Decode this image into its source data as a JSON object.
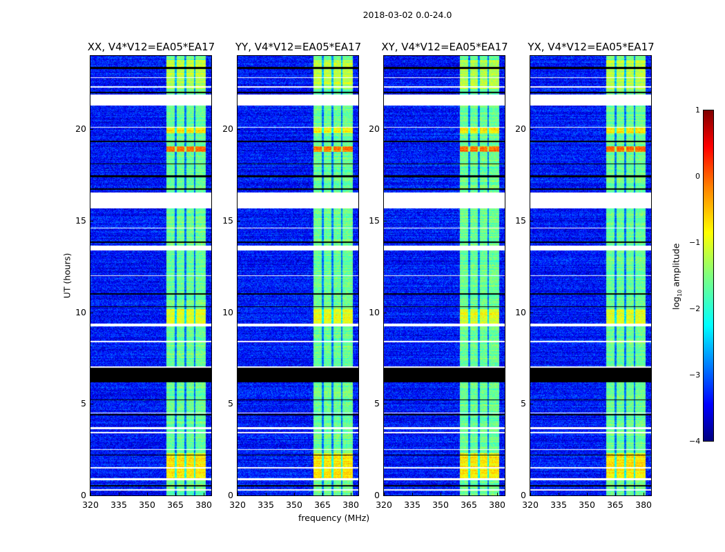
{
  "chart_data": {
    "type": "heatmap",
    "title": "2018-03-02 0.0-24.0",
    "xlabel": "frequency (MHz)",
    "ylabel": "UT (hours)",
    "xlim": [
      320,
      384
    ],
    "ylim": [
      0,
      24
    ],
    "xticks": [
      "320",
      "335",
      "350",
      "365",
      "380"
    ],
    "yticks": [
      "0",
      "5",
      "10",
      "15",
      "20"
    ],
    "panels": [
      {
        "title": "XX, V4*V12=EA05*EA17"
      },
      {
        "title": "YY, V4*V12=EA05*EA17"
      },
      {
        "title": "XY, V4*V12=EA05*EA17"
      },
      {
        "title": "YX, V4*V12=EA05*EA17"
      }
    ],
    "colorbar": {
      "label_prefix": "log",
      "label_sub": "10",
      "label_suffix": " amplitude",
      "range": [
        -4,
        1
      ],
      "ticks": [
        "1",
        "0",
        "−1",
        "−2",
        "−3",
        "−4"
      ],
      "colormap": "jet"
    },
    "background_level": -3.3,
    "bright_band_MHz": [
      360,
      381
    ],
    "bright_band_level": -1.6,
    "subband_gaps_MHz": [
      365,
      370,
      375
    ],
    "flagged_hours": [
      [
        0.3,
        0.35
      ],
      [
        0.85,
        0.95
      ],
      [
        1.5,
        1.55
      ],
      [
        2.5,
        2.55
      ],
      [
        3.4,
        3.5
      ],
      [
        3.65,
        3.75
      ],
      [
        4.5,
        4.55
      ],
      [
        7.0,
        7.05
      ],
      [
        8.4,
        8.45
      ],
      [
        9.25,
        9.4
      ],
      [
        12.0,
        12.05
      ],
      [
        13.4,
        13.65
      ],
      [
        14.6,
        14.65
      ],
      [
        15.7,
        16.55
      ],
      [
        20.1,
        20.15
      ],
      [
        21.3,
        21.9
      ],
      [
        22.3,
        22.35
      ],
      [
        22.8,
        22.85
      ]
    ],
    "zero_hours": [
      [
        0.5,
        0.6
      ],
      [
        2.2,
        2.25
      ],
      [
        4.4,
        4.45
      ],
      [
        5.2,
        5.25
      ],
      [
        6.2,
        7.0
      ],
      [
        10.3,
        10.35
      ],
      [
        11.0,
        11.05
      ],
      [
        13.8,
        13.9
      ],
      [
        16.7,
        16.8
      ],
      [
        17.4,
        17.5
      ],
      [
        18.1,
        18.15
      ],
      [
        19.3,
        19.4
      ],
      [
        22.0,
        22.05
      ],
      [
        23.3,
        23.4
      ]
    ],
    "hot_hours": [
      {
        "range": [
          0.9,
          2.3
        ],
        "level": -0.8
      },
      {
        "range": [
          18.8,
          19.1
        ],
        "level": -0.2
      },
      {
        "range": [
          19.8,
          20.1
        ],
        "level": -0.8
      },
      {
        "range": [
          22.2,
          23.8
        ],
        "level": -1.2
      },
      {
        "range": [
          9.4,
          10.2
        ],
        "level": -1.0
      }
    ]
  }
}
